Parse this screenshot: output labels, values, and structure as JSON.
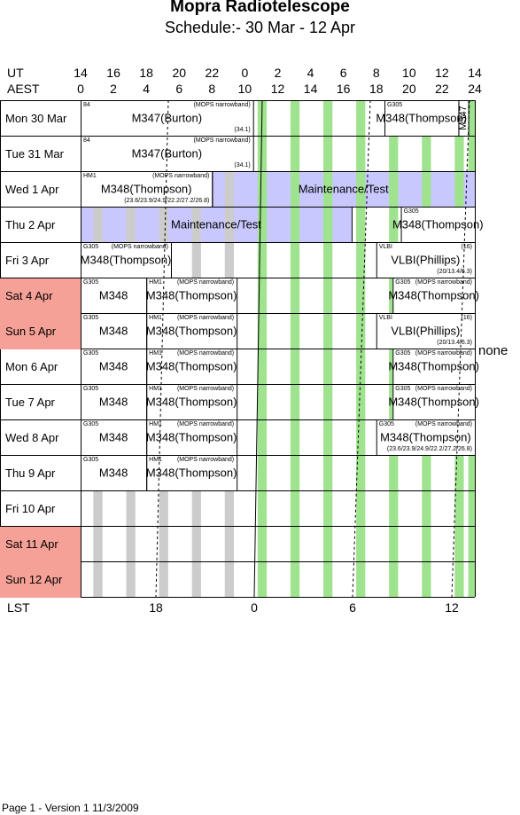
{
  "title": "Mopra Radiotelescope",
  "subtitle": "Schedule:- 30 Mar - 12 Apr",
  "axes": {
    "ut_label": "UT",
    "aest_label": "AEST",
    "lst_label": "LST",
    "ut_ticks": [
      "14",
      "16",
      "18",
      "20",
      "22",
      "0",
      "2",
      "4",
      "6",
      "8",
      "10",
      "12",
      "14"
    ],
    "aest_ticks": [
      "0",
      "2",
      "4",
      "6",
      "8",
      "10",
      "12",
      "14",
      "16",
      "18",
      "20",
      "22",
      "24"
    ],
    "lst_ticks": [
      "18",
      "0",
      "6",
      "12"
    ]
  },
  "days": [
    {
      "label": "Mon  30 Mar",
      "weekend": false
    },
    {
      "label": "Tue   31 Mar",
      "weekend": false
    },
    {
      "label": "Wed   1  Apr",
      "weekend": false
    },
    {
      "label": "Thu   2  Apr",
      "weekend": false
    },
    {
      "label": "Fri     3  Apr",
      "weekend": false
    },
    {
      "label": "Sat   4  Apr",
      "weekend": true
    },
    {
      "label": "Sun   5  Apr",
      "weekend": true
    },
    {
      "label": "Mon   6  Apr",
      "weekend": false
    },
    {
      "label": "Tue    7  Apr",
      "weekend": false
    },
    {
      "label": "Wed   8  Apr",
      "weekend": false
    },
    {
      "label": "Thu    9  Apr",
      "weekend": false
    },
    {
      "label": "Fri     10 Apr",
      "weekend": false
    },
    {
      "label": "Sat    11 Apr",
      "weekend": true
    },
    {
      "label": "Sun   12 Apr",
      "weekend": true
    }
  ],
  "blocks": [
    {
      "row": 0,
      "start": 0,
      "end": 10.5,
      "fill": "white",
      "tl": "84",
      "tr": "(MOPS narrowband)",
      "main": "M347(Burton)",
      "br": "(34.1)"
    },
    {
      "row": 0,
      "start": 18.5,
      "end": 23,
      "fill": "white",
      "tl": "G305",
      "main": "M348(Thompson)"
    },
    {
      "row": 0,
      "start": 23,
      "end": 23.6,
      "fill": "white",
      "main": "M347",
      "vertical": true
    },
    {
      "row": 1,
      "start": 0,
      "end": 10.5,
      "fill": "white",
      "tl": "84",
      "tr": "(MOPS narrowband)",
      "main": "M347(Burton)",
      "br": "(34.1)"
    },
    {
      "row": 2,
      "start": 0,
      "end": 8,
      "fill": "white",
      "tl": "HM1",
      "tr": "(MOPS narrowband)",
      "main": "M348(Thompson)",
      "br": "(23.6/23.9/24.9/22.2/27.2/26.8)"
    },
    {
      "row": 2,
      "start": 8,
      "end": 24,
      "fill": "blue",
      "main": "Maintenance/Test"
    },
    {
      "row": 3,
      "start": 0,
      "end": 16.5,
      "fill": "blue",
      "main": "Maintenance/Test"
    },
    {
      "row": 3,
      "start": 19.5,
      "end": 24,
      "fill": "white",
      "tl": "G305",
      "main": "M348(Thompson)"
    },
    {
      "row": 4,
      "start": 0,
      "end": 5.5,
      "fill": "white",
      "tl": "G305",
      "tr": "(MOPS narrowband)",
      "main": "M348(Thompson)"
    },
    {
      "row": 4,
      "start": 18,
      "end": 24,
      "fill": "white",
      "tl": "VLBI",
      "tr": "(16)",
      "main": "VLBI(Phillips)",
      "br": "(20/13.4/6.3)"
    },
    {
      "row": 5,
      "start": 0,
      "end": 4,
      "fill": "white",
      "tl": "G305",
      "main": "M348"
    },
    {
      "row": 5,
      "start": 4,
      "end": 9.5,
      "fill": "white",
      "tl": "HM1",
      "tr": "(MOPS narrowband)",
      "main": "M348(Thompson)"
    },
    {
      "row": 5,
      "start": 19,
      "end": 24,
      "fill": "white",
      "tl": "G305",
      "tr": "(MOPS narrowband)",
      "main": "M348(Thompson)"
    },
    {
      "row": 6,
      "start": 0,
      "end": 4,
      "fill": "white",
      "tl": "G305",
      "main": "M348"
    },
    {
      "row": 6,
      "start": 4,
      "end": 9.5,
      "fill": "white",
      "tl": "HM1",
      "tr": "(MOPS narrowband)",
      "main": "M348(Thompson)"
    },
    {
      "row": 6,
      "start": 18,
      "end": 24,
      "fill": "white",
      "tl": "VLBI",
      "tr": "(16)",
      "main": "VLBI(Phillips)",
      "br": "(20/13.4/6.3)"
    },
    {
      "row": 7,
      "start": 0,
      "end": 4,
      "fill": "white",
      "tl": "G305",
      "main": "M348"
    },
    {
      "row": 7,
      "start": 4,
      "end": 9.5,
      "fill": "white",
      "tl": "HM1",
      "tr": "(MOPS narrowband)",
      "main": "M348(Thompson)"
    },
    {
      "row": 7,
      "start": 19,
      "end": 24,
      "fill": "white",
      "tl": "G305",
      "tr": "(MOPS narrowband)",
      "main": "M348(Thompson)"
    },
    {
      "row": 8,
      "start": 0,
      "end": 4,
      "fill": "white",
      "tl": "G305",
      "main": "M348"
    },
    {
      "row": 8,
      "start": 4,
      "end": 9.5,
      "fill": "white",
      "tl": "HM1",
      "tr": "(MOPS narrowband)",
      "main": "M348(Thompson)"
    },
    {
      "row": 8,
      "start": 19,
      "end": 24,
      "fill": "white",
      "tl": "G305",
      "tr": "(MOPS narrowband)",
      "main": "M348(Thompson)"
    },
    {
      "row": 9,
      "start": 0,
      "end": 4,
      "fill": "white",
      "tl": "G305",
      "main": "M348"
    },
    {
      "row": 9,
      "start": 4,
      "end": 9.5,
      "fill": "white",
      "tl": "HM1",
      "tr": "(MOPS narrowband)",
      "main": "M348(Thompson)"
    },
    {
      "row": 9,
      "start": 18,
      "end": 24,
      "fill": "white",
      "tl": "G305",
      "tr": "(MOPS narrowband)",
      "main": "M348(Thompson)",
      "br": "(23.6/23.9/24.9/22.2/27.2/26.8)"
    },
    {
      "row": 10,
      "start": 0,
      "end": 4,
      "fill": "white",
      "tl": "G305",
      "main": "M348"
    },
    {
      "row": 10,
      "start": 4,
      "end": 9.5,
      "fill": "white",
      "tl": "HM1",
      "tr": "(MOPS narrowband)",
      "main": "M348(Thompson)"
    }
  ],
  "side_note": "none",
  "colors": {
    "green": "#9fe38f",
    "grey": "#cccccc",
    "blue": "#c8c8ff",
    "weekend": "#f6a197"
  },
  "footer": "Page 1 - Version 1  11/3/2009"
}
